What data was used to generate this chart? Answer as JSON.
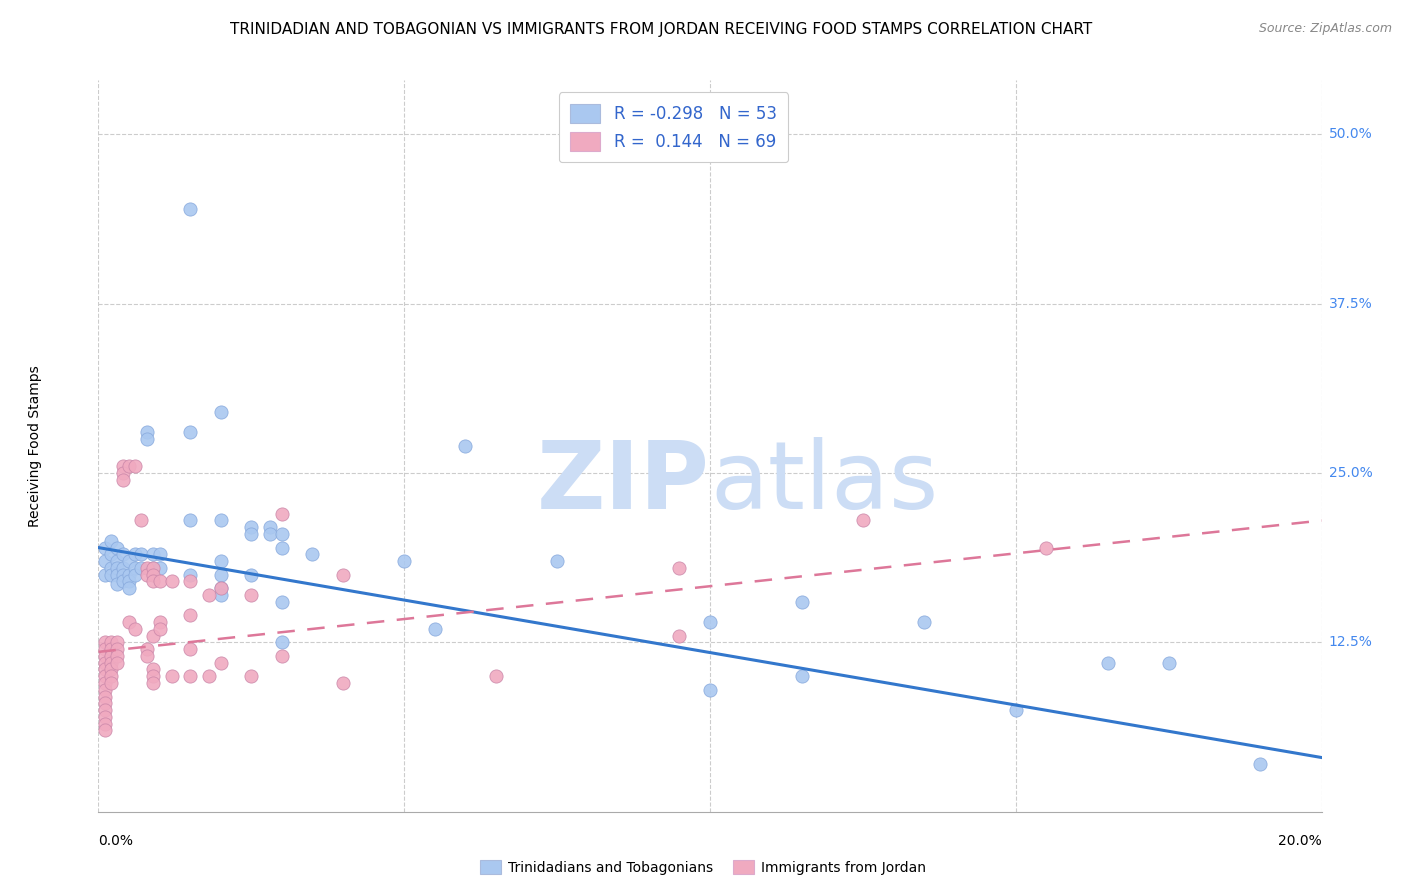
{
  "title": "TRINIDADIAN AND TOBAGONIAN VS IMMIGRANTS FROM JORDAN RECEIVING FOOD STAMPS CORRELATION CHART",
  "source": "Source: ZipAtlas.com",
  "ylabel": "Receiving Food Stamps",
  "ytick_labels": [
    "12.5%",
    "25.0%",
    "37.5%",
    "50.0%"
  ],
  "ytick_values": [
    0.125,
    0.25,
    0.375,
    0.5
  ],
  "xlim": [
    0.0,
    0.2
  ],
  "ylim": [
    0.0,
    0.54
  ],
  "legend1_color": "#aac8f0",
  "legend2_color": "#f0aac0",
  "line1_color": "#3377cc",
  "line2_color": "#dd7799",
  "blue_line_x": [
    0.0,
    0.2
  ],
  "blue_line_y": [
    0.195,
    0.04
  ],
  "pink_line_x": [
    0.0,
    0.2
  ],
  "pink_line_y": [
    0.118,
    0.215
  ],
  "title_fontsize": 11,
  "source_fontsize": 9,
  "axis_fontsize": 10,
  "tick_fontsize": 10,
  "legend_fontsize": 12,
  "blue_scatter": [
    [
      0.001,
      0.195
    ],
    [
      0.001,
      0.185
    ],
    [
      0.001,
      0.175
    ],
    [
      0.002,
      0.2
    ],
    [
      0.002,
      0.19
    ],
    [
      0.002,
      0.18
    ],
    [
      0.002,
      0.175
    ],
    [
      0.003,
      0.195
    ],
    [
      0.003,
      0.185
    ],
    [
      0.003,
      0.18
    ],
    [
      0.003,
      0.175
    ],
    [
      0.003,
      0.168
    ],
    [
      0.004,
      0.19
    ],
    [
      0.004,
      0.18
    ],
    [
      0.004,
      0.175
    ],
    [
      0.004,
      0.17
    ],
    [
      0.005,
      0.185
    ],
    [
      0.005,
      0.175
    ],
    [
      0.005,
      0.17
    ],
    [
      0.005,
      0.165
    ],
    [
      0.006,
      0.19
    ],
    [
      0.006,
      0.18
    ],
    [
      0.006,
      0.175
    ],
    [
      0.007,
      0.19
    ],
    [
      0.007,
      0.18
    ],
    [
      0.008,
      0.28
    ],
    [
      0.008,
      0.275
    ],
    [
      0.009,
      0.19
    ],
    [
      0.009,
      0.18
    ],
    [
      0.01,
      0.19
    ],
    [
      0.01,
      0.18
    ],
    [
      0.015,
      0.445
    ],
    [
      0.015,
      0.28
    ],
    [
      0.015,
      0.215
    ],
    [
      0.015,
      0.175
    ],
    [
      0.02,
      0.295
    ],
    [
      0.02,
      0.215
    ],
    [
      0.02,
      0.185
    ],
    [
      0.02,
      0.175
    ],
    [
      0.02,
      0.165
    ],
    [
      0.02,
      0.16
    ],
    [
      0.025,
      0.21
    ],
    [
      0.025,
      0.205
    ],
    [
      0.025,
      0.175
    ],
    [
      0.028,
      0.21
    ],
    [
      0.028,
      0.205
    ],
    [
      0.03,
      0.205
    ],
    [
      0.03,
      0.195
    ],
    [
      0.03,
      0.155
    ],
    [
      0.03,
      0.125
    ],
    [
      0.035,
      0.19
    ],
    [
      0.05,
      0.185
    ],
    [
      0.055,
      0.135
    ],
    [
      0.06,
      0.27
    ],
    [
      0.075,
      0.185
    ],
    [
      0.1,
      0.14
    ],
    [
      0.1,
      0.09
    ],
    [
      0.115,
      0.155
    ],
    [
      0.115,
      0.1
    ],
    [
      0.135,
      0.14
    ],
    [
      0.165,
      0.11
    ],
    [
      0.175,
      0.11
    ],
    [
      0.15,
      0.075
    ],
    [
      0.19,
      0.035
    ]
  ],
  "pink_scatter": [
    [
      0.001,
      0.125
    ],
    [
      0.001,
      0.12
    ],
    [
      0.001,
      0.115
    ],
    [
      0.001,
      0.11
    ],
    [
      0.001,
      0.105
    ],
    [
      0.001,
      0.1
    ],
    [
      0.001,
      0.095
    ],
    [
      0.001,
      0.09
    ],
    [
      0.001,
      0.085
    ],
    [
      0.001,
      0.08
    ],
    [
      0.001,
      0.075
    ],
    [
      0.001,
      0.07
    ],
    [
      0.001,
      0.065
    ],
    [
      0.001,
      0.06
    ],
    [
      0.002,
      0.125
    ],
    [
      0.002,
      0.12
    ],
    [
      0.002,
      0.115
    ],
    [
      0.002,
      0.11
    ],
    [
      0.002,
      0.105
    ],
    [
      0.002,
      0.1
    ],
    [
      0.002,
      0.095
    ],
    [
      0.003,
      0.125
    ],
    [
      0.003,
      0.12
    ],
    [
      0.003,
      0.115
    ],
    [
      0.003,
      0.11
    ],
    [
      0.004,
      0.255
    ],
    [
      0.004,
      0.25
    ],
    [
      0.004,
      0.245
    ],
    [
      0.005,
      0.255
    ],
    [
      0.005,
      0.14
    ],
    [
      0.006,
      0.255
    ],
    [
      0.006,
      0.135
    ],
    [
      0.007,
      0.215
    ],
    [
      0.008,
      0.18
    ],
    [
      0.008,
      0.175
    ],
    [
      0.008,
      0.12
    ],
    [
      0.008,
      0.115
    ],
    [
      0.009,
      0.18
    ],
    [
      0.009,
      0.175
    ],
    [
      0.009,
      0.17
    ],
    [
      0.009,
      0.13
    ],
    [
      0.009,
      0.105
    ],
    [
      0.009,
      0.1
    ],
    [
      0.009,
      0.095
    ],
    [
      0.01,
      0.17
    ],
    [
      0.01,
      0.14
    ],
    [
      0.01,
      0.135
    ],
    [
      0.012,
      0.17
    ],
    [
      0.012,
      0.1
    ],
    [
      0.015,
      0.17
    ],
    [
      0.015,
      0.145
    ],
    [
      0.015,
      0.12
    ],
    [
      0.015,
      0.1
    ],
    [
      0.018,
      0.16
    ],
    [
      0.018,
      0.1
    ],
    [
      0.02,
      0.165
    ],
    [
      0.02,
      0.11
    ],
    [
      0.025,
      0.16
    ],
    [
      0.025,
      0.1
    ],
    [
      0.03,
      0.22
    ],
    [
      0.03,
      0.115
    ],
    [
      0.04,
      0.175
    ],
    [
      0.04,
      0.095
    ],
    [
      0.065,
      0.1
    ],
    [
      0.095,
      0.18
    ],
    [
      0.095,
      0.13
    ],
    [
      0.125,
      0.215
    ],
    [
      0.155,
      0.195
    ]
  ]
}
